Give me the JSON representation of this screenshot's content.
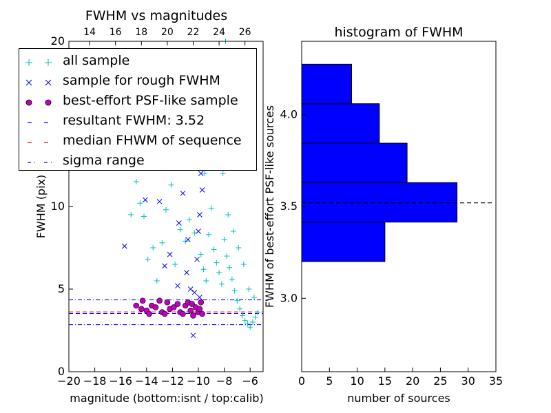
{
  "chart_data": [
    {
      "type": "scatter",
      "title": "FWHM vs magnitudes",
      "xlabel": "magnitude (bottom:isnt / top:calib)",
      "ylabel": "FWHM (pix)",
      "xlim": [
        -20,
        -5
      ],
      "ylim": [
        0,
        20
      ],
      "top_xlim": [
        12.4,
        27.4
      ],
      "xticks": [
        "−20",
        "−18",
        "−16",
        "−14",
        "−12",
        "−10",
        "−8",
        "−6"
      ],
      "top_xticks": [
        "14",
        "16",
        "18",
        "20",
        "22",
        "24",
        "26"
      ],
      "yticks": [
        "0",
        "5",
        "10",
        "15",
        "20"
      ],
      "legend_position": "upper-left",
      "series": [
        {
          "name": "all sample",
          "marker": "+",
          "color": "#00bfbf",
          "points": [
            [
              -15.2,
              9.5
            ],
            [
              -14.8,
              11.5
            ],
            [
              -14.5,
              10.2
            ],
            [
              -14.2,
              9.4
            ],
            [
              -13.9,
              6.8
            ],
            [
              -13.5,
              7.5
            ],
            [
              -13.2,
              5.5
            ],
            [
              -12.8,
              7.8
            ],
            [
              -12.5,
              9.8
            ],
            [
              -12.1,
              11.3
            ],
            [
              -11.8,
              6.5
            ],
            [
              -11.4,
              8.6
            ],
            [
              -11.0,
              7.9
            ],
            [
              -10.7,
              9.2
            ],
            [
              -10.3,
              8.4
            ],
            [
              -9.8,
              7.1
            ],
            [
              -9.6,
              6.2
            ],
            [
              -9.4,
              5.5
            ],
            [
              -9.2,
              8.3
            ],
            [
              -9.0,
              9.9
            ],
            [
              -8.8,
              7.4
            ],
            [
              -8.6,
              6.6
            ],
            [
              -8.4,
              6.0
            ],
            [
              -8.2,
              5.3
            ],
            [
              -8.0,
              8.0
            ],
            [
              -7.8,
              7.0
            ],
            [
              -7.6,
              6.3
            ],
            [
              -7.4,
              5.6
            ],
            [
              -7.2,
              4.9
            ],
            [
              -7.0,
              4.3
            ],
            [
              -6.8,
              3.8
            ],
            [
              -6.6,
              3.4
            ],
            [
              -6.4,
              3.1
            ],
            [
              -6.2,
              2.9
            ],
            [
              -6.0,
              2.7
            ],
            [
              -5.8,
              3.0
            ],
            [
              -5.6,
              3.3
            ],
            [
              -5.4,
              3.6
            ],
            [
              -8.5,
              14.0
            ],
            [
              -8.3,
              16.5
            ],
            [
              -8.1,
              12.0
            ],
            [
              -7.9,
              20.0
            ],
            [
              -9.1,
              13.0
            ],
            [
              -9.5,
              12.0
            ],
            [
              -7.7,
              9.5
            ],
            [
              -7.3,
              8.5
            ],
            [
              -6.9,
              7.5
            ],
            [
              -6.5,
              6.5
            ],
            [
              -6.1,
              5.0
            ],
            [
              -5.7,
              4.5
            ]
          ]
        },
        {
          "name": "sample for rough FWHM",
          "marker": "x",
          "color": "#0000ff",
          "points": [
            [
              -15.7,
              7.6
            ],
            [
              -14.1,
              10.4
            ],
            [
              -13.0,
              10.3
            ],
            [
              -12.2,
              7.1
            ],
            [
              -11.5,
              9.0
            ],
            [
              -11.2,
              10.8
            ],
            [
              -10.9,
              6.0
            ],
            [
              -10.6,
              5.0
            ],
            [
              -10.3,
              4.8
            ],
            [
              -10.1,
              6.8
            ],
            [
              -10.0,
              8.5
            ],
            [
              -9.9,
              9.5
            ],
            [
              -9.8,
              12.0
            ],
            [
              -9.7,
              11.0
            ],
            [
              -9.9,
              4.5
            ],
            [
              -10.4,
              2.2
            ],
            [
              -10.8,
              8.0
            ],
            [
              -11.6,
              5.2
            ],
            [
              -12.6,
              6.4
            ]
          ]
        },
        {
          "name": "best-effort PSF-like sample",
          "marker": "o",
          "color": "#bf00bf",
          "points": [
            [
              -14.8,
              4.0
            ],
            [
              -14.4,
              3.8
            ],
            [
              -14.3,
              4.3
            ],
            [
              -14.0,
              3.7
            ],
            [
              -13.8,
              3.5
            ],
            [
              -13.6,
              4.0
            ],
            [
              -13.3,
              3.9
            ],
            [
              -13.0,
              4.3
            ],
            [
              -12.8,
              3.6
            ],
            [
              -12.6,
              3.5
            ],
            [
              -12.4,
              4.2
            ],
            [
              -12.2,
              3.8
            ],
            [
              -11.9,
              3.9
            ],
            [
              -11.6,
              4.1
            ],
            [
              -11.4,
              3.6
            ],
            [
              -11.2,
              3.5
            ],
            [
              -11.0,
              4.0
            ],
            [
              -10.8,
              4.2
            ],
            [
              -10.6,
              3.7
            ],
            [
              -10.4,
              3.4
            ],
            [
              -10.2,
              3.9
            ],
            [
              -10.0,
              3.6
            ],
            [
              -9.8,
              4.2
            ],
            [
              -9.7,
              3.5
            ],
            [
              -9.9,
              3.8
            ],
            [
              -10.5,
              4.1
            ]
          ]
        }
      ],
      "lines": [
        {
          "name": "resultant FWHM: 3.52",
          "y": 3.52,
          "color": "#0000ff",
          "style": "dashed"
        },
        {
          "name": "median FHWM of sequence",
          "y": 3.62,
          "color": "#ff0000",
          "style": "dashed"
        },
        {
          "name": "sigma range",
          "y": [
            2.85,
            4.35
          ],
          "color": "#0000ff",
          "style": "dashdot"
        }
      ]
    },
    {
      "type": "bar",
      "orientation": "horizontal",
      "title": "histogram of FWHM",
      "xlabel": "number of sources",
      "ylabel": "FWHM of best-effort PSF-like sources",
      "xlim": [
        0,
        35
      ],
      "ylim": [
        2.6,
        4.4
      ],
      "xticks": [
        "0",
        "5",
        "10",
        "15",
        "20",
        "25",
        "30",
        "35"
      ],
      "yticks": [
        "3.0",
        "3.5",
        "4.0"
      ],
      "color": "#0000ff",
      "bins": [
        {
          "from": 3.2,
          "to": 3.415,
          "count": 15
        },
        {
          "from": 3.415,
          "to": 3.63,
          "count": 28
        },
        {
          "from": 3.63,
          "to": 3.845,
          "count": 19
        },
        {
          "from": 3.845,
          "to": 4.06,
          "count": 14
        },
        {
          "from": 4.06,
          "to": 4.275,
          "count": 9
        }
      ],
      "hline": {
        "y": 3.52,
        "style": "dashed",
        "color": "#000000"
      }
    }
  ],
  "legend": {
    "items": [
      {
        "label": "all sample",
        "marker": "+",
        "color": "#00bfbf"
      },
      {
        "label": "sample for rough FWHM",
        "marker": "x",
        "color": "#0000ff"
      },
      {
        "label": "best-effort PSF-like sample",
        "marker": "o",
        "color": "#bf00bf"
      },
      {
        "label": "resultant FWHM: 3.52",
        "marker": "dashed",
        "color": "#0000ff"
      },
      {
        "label": "median FHWM of sequence",
        "marker": "dashed",
        "color": "#ff0000"
      },
      {
        "label": "sigma range",
        "marker": "dashdot",
        "color": "#0000ff"
      }
    ]
  }
}
